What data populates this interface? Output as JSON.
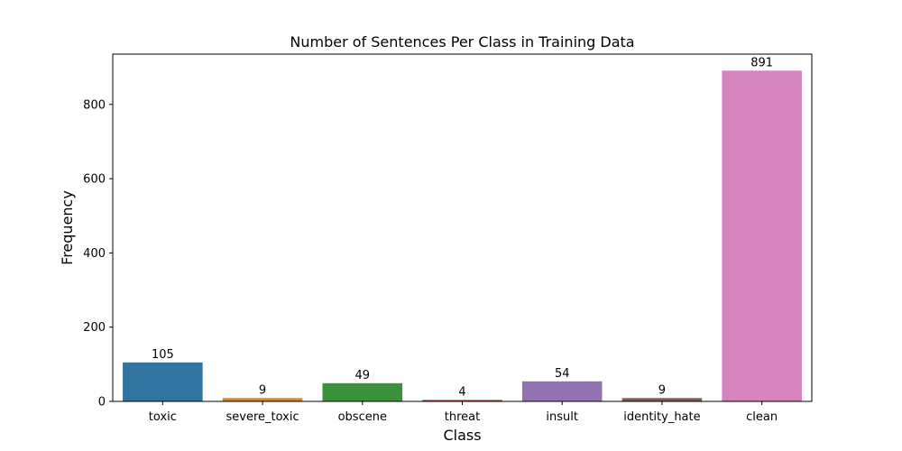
{
  "chart_data": {
    "type": "bar",
    "title": "Number of Sentences Per Class in Training Data",
    "xlabel": "Class",
    "ylabel": "Frequency",
    "categories": [
      "toxic",
      "severe_toxic",
      "obscene",
      "threat",
      "insult",
      "identity_hate",
      "clean"
    ],
    "values": [
      105,
      9,
      49,
      4,
      54,
      9,
      891
    ],
    "data_labels": [
      "105",
      "9",
      "49",
      "4",
      "54",
      "9",
      "891"
    ],
    "colors": [
      "#3274a1",
      "#e1812c",
      "#3a923a",
      "#c03d3e",
      "#9372b2",
      "#845b53",
      "#d684bd"
    ],
    "ylim": [
      0,
      935.55
    ],
    "yticks": [
      0,
      200,
      400,
      600,
      800
    ],
    "ytick_labels": [
      "0",
      "200",
      "400",
      "600",
      "800"
    ],
    "grid": false,
    "legend": "none"
  }
}
